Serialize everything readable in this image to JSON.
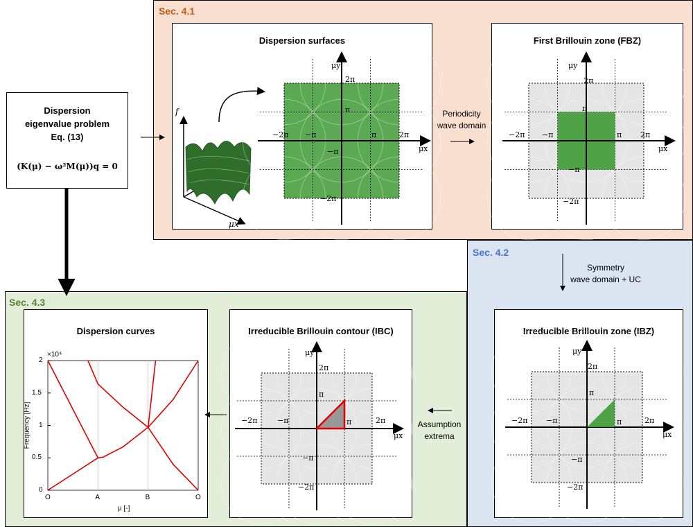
{
  "sections": {
    "s41": {
      "label": "Sec. 4.1",
      "color": "#c55a11",
      "bg": "#f9dfd0"
    },
    "s42": {
      "label": "Sec. 4.2",
      "color": "#4472c4",
      "bg": "#dae5f1"
    },
    "s43": {
      "label": "Sec. 4.3",
      "color": "#548235",
      "bg": "#e2eed8"
    }
  },
  "problem_box": {
    "line1": "Dispersion",
    "line2": "eigenvalue problem",
    "line3": "Eq. (13)",
    "equation": "(K(μ) − ω²M(μ))q = 0"
  },
  "panels": {
    "surfaces": {
      "title": "Dispersion surfaces"
    },
    "fbz": {
      "title": "First Brillouin zone (FBZ)"
    },
    "ibz": {
      "title": "Irreducible Brillouin zone (IBZ)"
    },
    "ibc": {
      "title": "Irreducible Brillouin contour (IBC)"
    },
    "curves": {
      "title": "Dispersion curves"
    }
  },
  "arrow_notes": {
    "periodicity": [
      "Periodicity",
      "wave domain"
    ],
    "symmetry": [
      "Symmetry",
      "wave domain + UC"
    ],
    "assumption": [
      "Assumption",
      "extrema"
    ]
  },
  "axis_labels": {
    "f": "f",
    "mu_x": "μx",
    "mu_y": "μy",
    "two_pi": "2π",
    "pi": "π",
    "neg_pi": "−π",
    "neg_two_pi": "−2π"
  },
  "colors": {
    "green": "#3f9a35",
    "gray": "#cfcfcf",
    "red": "#e00000"
  },
  "chart_data": {
    "type": "line",
    "title": "Dispersion curves",
    "xlabel": "μ [-]",
    "ylabel": "Frequency [Hz]",
    "y_multiplier": "×10⁴",
    "x_ticks": [
      "O",
      "A",
      "B",
      "O"
    ],
    "y_ticks": [
      "0",
      "0.5",
      "1",
      "1.5",
      "2"
    ],
    "ylim": [
      0,
      20000
    ],
    "x_positions": [
      0,
      1,
      2,
      3
    ],
    "series": [
      {
        "x": [
          0,
          1
        ],
        "values": [
          0,
          5000
        ]
      },
      {
        "x": [
          0,
          1
        ],
        "values": [
          20000,
          5000
        ]
      },
      {
        "x": [
          1,
          1.1,
          1.5,
          2
        ],
        "values": [
          5000,
          5100,
          6700,
          9700
        ]
      },
      {
        "x": [
          0.8,
          1.0,
          1.5,
          2.0
        ],
        "values": [
          20000,
          16400,
          12800,
          9700
        ]
      },
      {
        "x": [
          2,
          2.5,
          3
        ],
        "values": [
          9700,
          14000,
          20000
        ]
      },
      {
        "x": [
          2,
          2.5,
          3
        ],
        "values": [
          9700,
          4000,
          0
        ]
      },
      {
        "x": [
          2,
          2.15
        ],
        "values": [
          9700,
          20000
        ]
      }
    ],
    "grid": "vertical lines at A and B"
  }
}
